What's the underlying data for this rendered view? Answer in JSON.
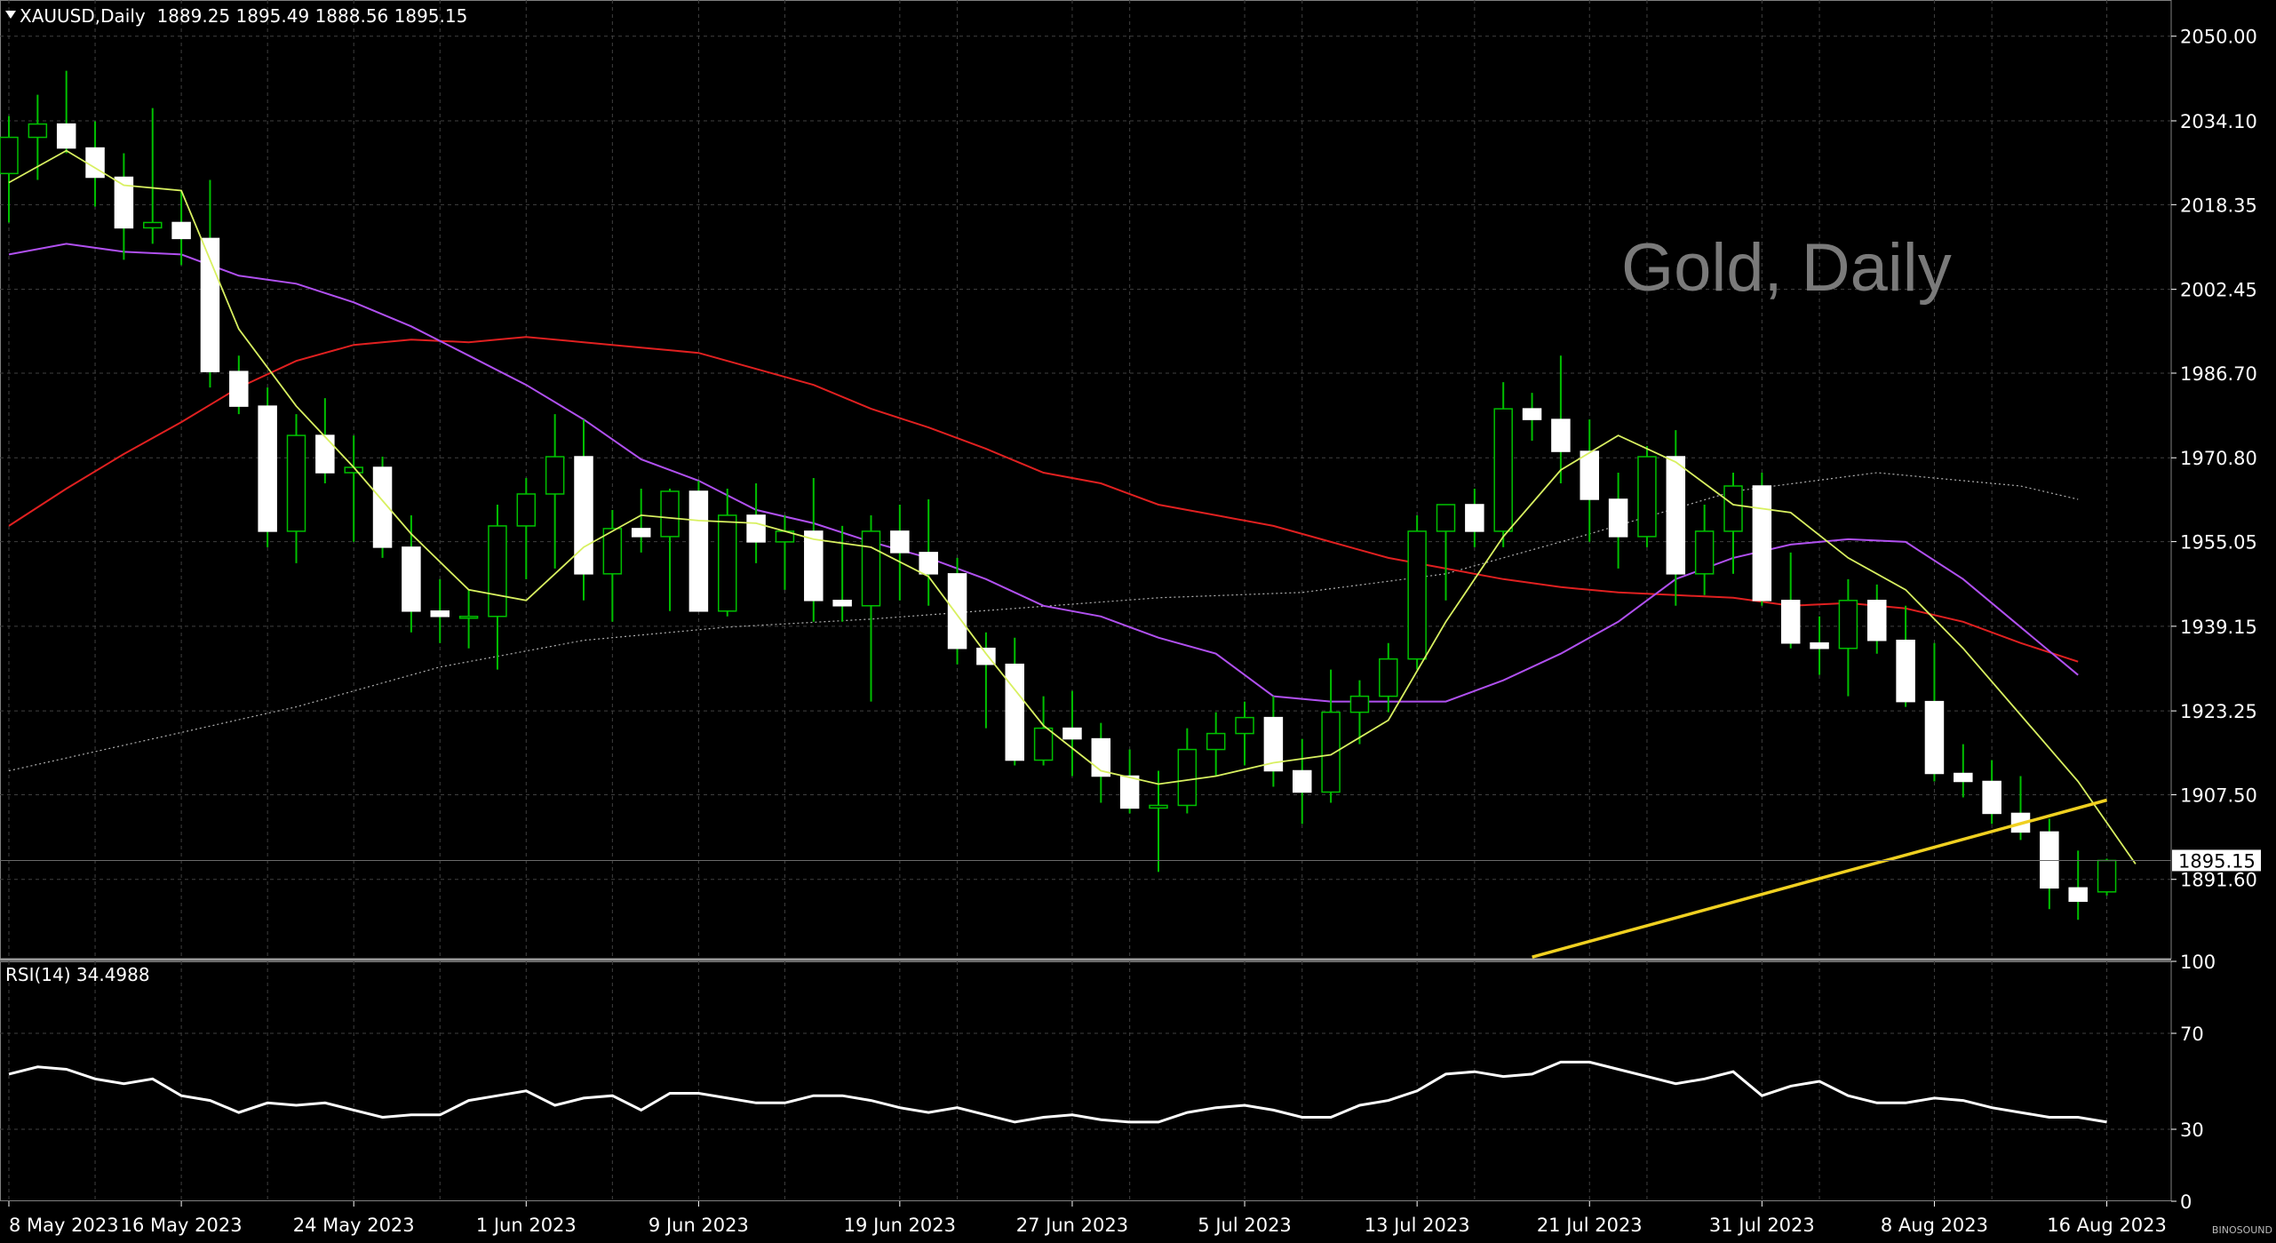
{
  "header": {
    "symbol": "XAUUSD,Daily",
    "ohlc": "1889.25 1895.49 1888.56 1895.15"
  },
  "watermark": "Gold, Daily",
  "rsi_header": "RSI(14) 34.4988",
  "logo": "BINOSOUND",
  "colors": {
    "background": "#000000",
    "grid": "#404040",
    "candle_up_body": "#000000",
    "candle_down_body": "#ffffff",
    "candle_wick": "#00c000",
    "ma_fast": "#d8f060",
    "ma_mid": "#b050f0",
    "ma_slow": "#e02020",
    "ma_long": "#b0b0b0",
    "trend": "#f0d020",
    "rsi": "#ffffff"
  },
  "chart_data": [
    {
      "type": "candlestick",
      "title": "XAUUSD,Daily",
      "last_price": "1895.15",
      "price_ticks": [
        "2050.00",
        "2034.10",
        "2018.35",
        "2002.45",
        "1986.70",
        "1970.80",
        "1955.05",
        "1939.15",
        "1923.25",
        "1907.50",
        "1891.60"
      ],
      "date_labels": [
        "8 May 2023",
        "16 May 2023",
        "24 May 2023",
        "1 Jun 2023",
        "9 Jun 2023",
        "19 Jun 2023",
        "27 Jun 2023",
        "5 Jul 2023",
        "13 Jul 2023",
        "21 Jul 2023",
        "31 Jul 2023",
        "8 Aug 2023",
        "16 Aug 2023"
      ],
      "date_label_index": [
        0,
        6,
        12,
        18,
        24,
        31,
        37,
        43,
        49,
        55,
        61,
        67,
        73
      ],
      "ylim": [
        1876.7,
        2056.8
      ],
      "candles": [
        [
          2024.2,
          2035.0,
          2015.0,
          2031.0
        ],
        [
          2031.0,
          2039.0,
          2023.0,
          2033.5
        ],
        [
          2033.5,
          2043.5,
          2028.0,
          2029.0
        ],
        [
          2029.0,
          2034.0,
          2018.0,
          2023.5
        ],
        [
          2023.5,
          2028.0,
          2008.0,
          2014.0
        ],
        [
          2014.0,
          2036.5,
          2011.0,
          2015.0
        ],
        [
          2015.0,
          2021.0,
          2007.0,
          2012.0
        ],
        [
          2012.0,
          2023.0,
          1984.0,
          1987.0
        ],
        [
          1987.0,
          1990.0,
          1979.0,
          1980.5
        ],
        [
          1980.5,
          1984.0,
          1954.0,
          1957.0
        ],
        [
          1957.0,
          1979.0,
          1951.0,
          1975.0
        ],
        [
          1975.0,
          1982.0,
          1966.0,
          1968.0
        ],
        [
          1968.0,
          1975.0,
          1955.0,
          1969.0
        ],
        [
          1969.0,
          1971.0,
          1952.0,
          1954.0
        ],
        [
          1954.0,
          1960.0,
          1938.0,
          1942.0
        ],
        [
          1942.0,
          1948.0,
          1936.0,
          1941.0
        ],
        [
          1941.0,
          1946.0,
          1935.0,
          1941.0
        ],
        [
          1941.0,
          1962.0,
          1931.0,
          1958.0
        ],
        [
          1958.0,
          1967.0,
          1948.0,
          1964.0
        ],
        [
          1964.0,
          1979.0,
          1950.0,
          1971.0
        ],
        [
          1971.0,
          1978.0,
          1944.0,
          1949.0
        ],
        [
          1949.0,
          1961.0,
          1940.0,
          1957.5
        ],
        [
          1957.5,
          1965.0,
          1953.0,
          1956.0
        ],
        [
          1956.0,
          1965.0,
          1942.0,
          1964.5
        ],
        [
          1964.5,
          1966.5,
          1942.0,
          1942.0
        ],
        [
          1942.0,
          1965.0,
          1941.0,
          1960.0
        ],
        [
          1960.0,
          1966.0,
          1951.0,
          1955.0
        ],
        [
          1955.0,
          1960.0,
          1946.0,
          1957.0
        ],
        [
          1957.0,
          1967.0,
          1940.0,
          1944.0
        ],
        [
          1944.0,
          1958.0,
          1940.0,
          1943.0
        ],
        [
          1943.0,
          1960.0,
          1925.0,
          1957.0
        ],
        [
          1957.0,
          1962.0,
          1944.0,
          1953.0
        ],
        [
          1953.0,
          1963.0,
          1943.0,
          1949.0
        ],
        [
          1949.0,
          1952.0,
          1932.0,
          1935.0
        ],
        [
          1935.0,
          1938.0,
          1920.0,
          1932.0
        ],
        [
          1932.0,
          1937.0,
          1913.0,
          1914.0
        ],
        [
          1914.0,
          1926.0,
          1913.0,
          1920.0
        ],
        [
          1920.0,
          1927.0,
          1911.0,
          1918.0
        ],
        [
          1918.0,
          1921.0,
          1906.0,
          1911.0
        ],
        [
          1911.0,
          1916.0,
          1904.0,
          1905.0
        ],
        [
          1905.0,
          1912.0,
          1893.0,
          1905.5
        ],
        [
          1905.5,
          1920.0,
          1904.0,
          1916.0
        ],
        [
          1916.0,
          1923.0,
          1911.0,
          1919.0
        ],
        [
          1919.0,
          1925.0,
          1913.0,
          1922.0
        ],
        [
          1922.0,
          1926.0,
          1909.0,
          1912.0
        ],
        [
          1912.0,
          1918.0,
          1902.0,
          1908.0
        ],
        [
          1908.0,
          1931.0,
          1906.0,
          1923.0
        ],
        [
          1923.0,
          1929.0,
          1917.0,
          1926.0
        ],
        [
          1926.0,
          1936.0,
          1923.0,
          1933.0
        ],
        [
          1933.0,
          1960.0,
          1931.0,
          1957.0
        ],
        [
          1957.0,
          1962.0,
          1944.0,
          1962.0
        ],
        [
          1962.0,
          1965.0,
          1954.0,
          1957.0
        ],
        [
          1957.0,
          1985.0,
          1954.0,
          1980.0
        ],
        [
          1980.0,
          1983.0,
          1974.0,
          1978.0
        ],
        [
          1978.0,
          1990.0,
          1966.0,
          1972.0
        ],
        [
          1972.0,
          1978.0,
          1955.0,
          1963.0
        ],
        [
          1963.0,
          1968.0,
          1950.0,
          1956.0
        ],
        [
          1956.0,
          1973.0,
          1954.0,
          1971.0
        ],
        [
          1971.0,
          1976.0,
          1943.0,
          1949.0
        ],
        [
          1949.0,
          1962.0,
          1945.0,
          1957.0
        ],
        [
          1957.0,
          1968.0,
          1949.0,
          1965.5
        ],
        [
          1965.5,
          1968.0,
          1943.0,
          1944.0
        ],
        [
          1944.0,
          1953.0,
          1935.0,
          1936.0
        ],
        [
          1936.0,
          1941.0,
          1930.0,
          1935.0
        ],
        [
          1935.0,
          1948.0,
          1926.0,
          1944.0
        ],
        [
          1944.0,
          1947.0,
          1934.0,
          1936.5
        ],
        [
          1936.5,
          1943.0,
          1924.0,
          1925.0
        ],
        [
          1925.0,
          1936.0,
          1910.0,
          1911.5
        ],
        [
          1911.5,
          1917.0,
          1907.0,
          1910.0
        ],
        [
          1910.0,
          1914.0,
          1902.0,
          1904.0
        ],
        [
          1904.0,
          1911.0,
          1899.0,
          1900.5
        ],
        [
          1900.5,
          1903.0,
          1886.0,
          1890.0
        ],
        [
          1890.0,
          1897.0,
          1884.0,
          1887.5
        ],
        [
          1889.25,
          1895.49,
          1888.56,
          1895.15
        ]
      ],
      "ma_fast": [
        [
          0,
          2022.5
        ],
        [
          2,
          2028.5
        ],
        [
          4,
          2022.0
        ],
        [
          6,
          2021.0
        ],
        [
          8,
          1995.0
        ],
        [
          10,
          1980.5
        ],
        [
          12,
          1969.0
        ],
        [
          14,
          1956.5
        ],
        [
          16,
          1946.0
        ],
        [
          18,
          1944.0
        ],
        [
          20,
          1954.0
        ],
        [
          22,
          1960.0
        ],
        [
          24,
          1959.0
        ],
        [
          26,
          1958.5
        ],
        [
          28,
          1955.5
        ],
        [
          30,
          1954.0
        ],
        [
          32,
          1948.5
        ],
        [
          34,
          1934.0
        ],
        [
          36,
          1920.5
        ],
        [
          38,
          1912.0
        ],
        [
          40,
          1909.5
        ],
        [
          42,
          1911.0
        ],
        [
          44,
          1913.5
        ],
        [
          46,
          1915.0
        ],
        [
          48,
          1921.5
        ],
        [
          50,
          1940.0
        ],
        [
          52,
          1956.0
        ],
        [
          54,
          1968.5
        ],
        [
          56,
          1975.0
        ],
        [
          58,
          1970.0
        ],
        [
          60,
          1962.0
        ],
        [
          62,
          1960.5
        ],
        [
          64,
          1952.0
        ],
        [
          66,
          1946.0
        ],
        [
          68,
          1935.0
        ],
        [
          70,
          1922.5
        ],
        [
          72,
          1910.0
        ],
        [
          74,
          1894.5
        ]
      ],
      "ma_mid": [
        [
          0,
          2009.0
        ],
        [
          2,
          2011.0
        ],
        [
          4,
          2009.5
        ],
        [
          6,
          2009.0
        ],
        [
          8,
          2005.0
        ],
        [
          10,
          2003.5
        ],
        [
          12,
          2000.0
        ],
        [
          14,
          1995.5
        ],
        [
          16,
          1990.0
        ],
        [
          18,
          1984.5
        ],
        [
          20,
          1978.0
        ],
        [
          22,
          1970.5
        ],
        [
          24,
          1966.5
        ],
        [
          26,
          1961.0
        ],
        [
          28,
          1958.5
        ],
        [
          30,
          1955.0
        ],
        [
          32,
          1952.0
        ],
        [
          34,
          1948.0
        ],
        [
          36,
          1943.0
        ],
        [
          38,
          1941.0
        ],
        [
          40,
          1937.0
        ],
        [
          42,
          1934.0
        ],
        [
          44,
          1926.0
        ],
        [
          46,
          1925.0
        ],
        [
          48,
          1925.0
        ],
        [
          50,
          1925.0
        ],
        [
          52,
          1929.0
        ],
        [
          54,
          1934.0
        ],
        [
          56,
          1940.0
        ],
        [
          58,
          1948.0
        ],
        [
          60,
          1952.0
        ],
        [
          62,
          1954.5
        ],
        [
          64,
          1955.5
        ],
        [
          66,
          1955.0
        ],
        [
          68,
          1948.0
        ],
        [
          70,
          1939.0
        ],
        [
          72,
          1930.0
        ]
      ],
      "ma_slow": [
        [
          0,
          1958.0
        ],
        [
          2,
          1965.0
        ],
        [
          4,
          1971.5
        ],
        [
          6,
          1977.5
        ],
        [
          8,
          1984.0
        ],
        [
          10,
          1989.0
        ],
        [
          12,
          1992.0
        ],
        [
          14,
          1993.0
        ],
        [
          16,
          1992.5
        ],
        [
          18,
          1993.5
        ],
        [
          20,
          1992.5
        ],
        [
          22,
          1991.5
        ],
        [
          24,
          1990.5
        ],
        [
          26,
          1987.5
        ],
        [
          28,
          1984.5
        ],
        [
          30,
          1980.0
        ],
        [
          32,
          1976.5
        ],
        [
          34,
          1972.5
        ],
        [
          36,
          1968.0
        ],
        [
          38,
          1966.0
        ],
        [
          40,
          1962.0
        ],
        [
          42,
          1960.0
        ],
        [
          44,
          1958.0
        ],
        [
          46,
          1955.0
        ],
        [
          48,
          1952.0
        ],
        [
          50,
          1950.0
        ],
        [
          52,
          1948.0
        ],
        [
          54,
          1946.5
        ],
        [
          56,
          1945.5
        ],
        [
          58,
          1945.0
        ],
        [
          60,
          1944.5
        ],
        [
          62,
          1943.0
        ],
        [
          64,
          1943.5
        ],
        [
          66,
          1942.5
        ],
        [
          68,
          1940.0
        ],
        [
          70,
          1936.0
        ],
        [
          72,
          1932.5
        ]
      ],
      "ma_long": [
        [
          0,
          1912.0
        ],
        [
          5,
          1918.0
        ],
        [
          10,
          1924.0
        ],
        [
          15,
          1931.5
        ],
        [
          20,
          1936.5
        ],
        [
          25,
          1939.0
        ],
        [
          30,
          1940.5
        ],
        [
          35,
          1942.5
        ],
        [
          40,
          1944.5
        ],
        [
          45,
          1945.5
        ],
        [
          50,
          1949.0
        ],
        [
          55,
          1956.5
        ],
        [
          60,
          1964.5
        ],
        [
          65,
          1968.0
        ],
        [
          70,
          1965.5
        ],
        [
          72,
          1963.0
        ]
      ],
      "trendline": [
        [
          53,
          1877.0
        ],
        [
          73,
          1906.5
        ]
      ]
    },
    {
      "type": "line",
      "title": "RSI(14) 34.4988",
      "ylim": [
        0,
        100
      ],
      "y_ticks": [
        "100",
        "70",
        "30",
        "0"
      ],
      "y_tick_values": [
        100,
        70,
        30,
        0
      ],
      "values": [
        53,
        56,
        55,
        51,
        49,
        51,
        44,
        42,
        37,
        41,
        40,
        41,
        38,
        35,
        36,
        36,
        42,
        44,
        46,
        40,
        43,
        44,
        38,
        45,
        45,
        43,
        41,
        41,
        44,
        44,
        42,
        39,
        37,
        39,
        36,
        33,
        35,
        36,
        34,
        33,
        33,
        37,
        39,
        40,
        38,
        35,
        35,
        40,
        42,
        46,
        53,
        54,
        52,
        53,
        58,
        58,
        55,
        52,
        49,
        51,
        54,
        44,
        48,
        50,
        44,
        41,
        41,
        43,
        42,
        39,
        37,
        35,
        35,
        33
      ]
    }
  ]
}
